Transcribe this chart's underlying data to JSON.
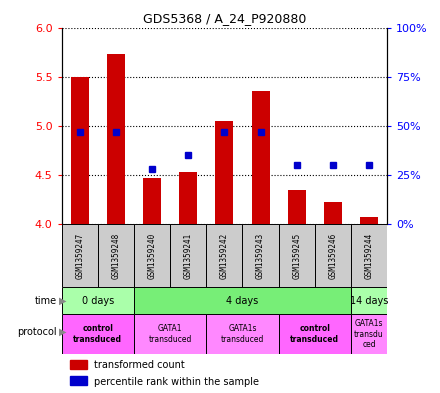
{
  "title": "GDS5368 / A_24_P920880",
  "samples": [
    "GSM1359247",
    "GSM1359248",
    "GSM1359240",
    "GSM1359241",
    "GSM1359242",
    "GSM1359243",
    "GSM1359245",
    "GSM1359246",
    "GSM1359244"
  ],
  "transformed_count": [
    5.5,
    5.73,
    4.47,
    4.53,
    5.05,
    5.35,
    4.35,
    4.22,
    4.07
  ],
  "percentile_rank": [
    47,
    47,
    28,
    35,
    47,
    47,
    30,
    30,
    30
  ],
  "ylim": [
    4.0,
    6.0
  ],
  "yticks": [
    4.0,
    4.5,
    5.0,
    5.5,
    6.0
  ],
  "y2lim": [
    0,
    100
  ],
  "y2ticks": [
    0,
    25,
    50,
    75,
    100
  ],
  "y2ticklabels": [
    "0%",
    "25%",
    "50%",
    "75%",
    "100%"
  ],
  "bar_color": "#cc0000",
  "dot_color": "#0000cc",
  "bar_bottom": 4.0,
  "time_groups": [
    {
      "label": "0 days",
      "start": 0,
      "end": 2,
      "color": "#aaffaa"
    },
    {
      "label": "4 days",
      "start": 2,
      "end": 8,
      "color": "#77ee77"
    },
    {
      "label": "14 days",
      "start": 8,
      "end": 9,
      "color": "#aaffaa"
    }
  ],
  "protocol_groups": [
    {
      "label": "control\ntransduced",
      "start": 0,
      "end": 2,
      "color": "#ff66ff",
      "bold": true
    },
    {
      "label": "GATA1\ntransduced",
      "start": 2,
      "end": 4,
      "color": "#ff88ff",
      "bold": false
    },
    {
      "label": "GATA1s\ntransduced",
      "start": 4,
      "end": 6,
      "color": "#ff88ff",
      "bold": false
    },
    {
      "label": "control\ntransduced",
      "start": 6,
      "end": 8,
      "color": "#ff66ff",
      "bold": true
    },
    {
      "label": "GATA1s\ntransdu\nced",
      "start": 8,
      "end": 9,
      "color": "#ff88ff",
      "bold": false
    }
  ],
  "sample_box_color": "#cccccc",
  "legend_items": [
    {
      "color": "#cc0000",
      "label": "transformed count"
    },
    {
      "color": "#0000cc",
      "label": "percentile rank within the sample"
    }
  ]
}
